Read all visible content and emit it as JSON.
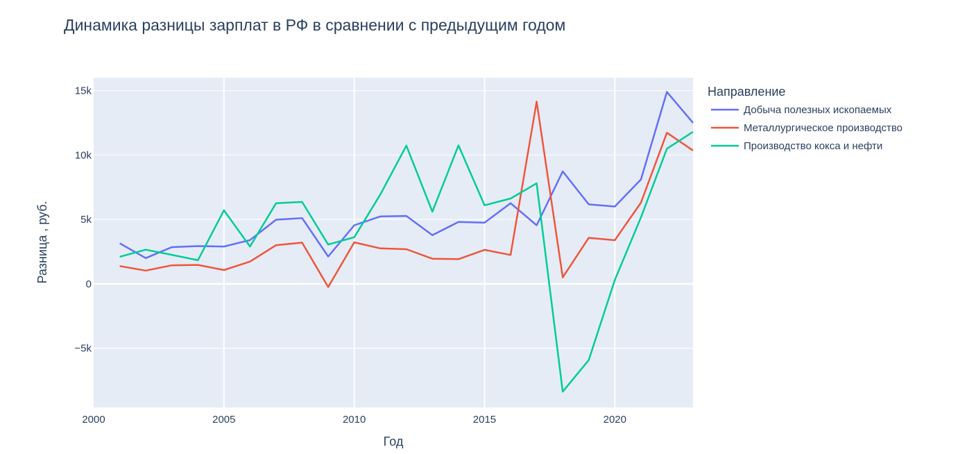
{
  "chart_data": {
    "type": "line",
    "title": "Динамика разницы зарплат в РФ в сравнении с предыдущим годом",
    "xlabel": "Год",
    "ylabel": "Разница , руб.",
    "legend_title": "Направление",
    "legend_position": "top-right outside",
    "grid": true,
    "xlim": [
      2000,
      2023
    ],
    "ylim": [
      -9600,
      16000
    ],
    "x_ticks": [
      2000,
      2005,
      2010,
      2015,
      2020
    ],
    "y_ticks": [
      -5000,
      0,
      5000,
      10000,
      15000
    ],
    "y_tick_labels": [
      "−5k",
      "0",
      "5k",
      "10k",
      "15k"
    ],
    "x": [
      2001,
      2002,
      2003,
      2004,
      2005,
      2006,
      2007,
      2008,
      2009,
      2010,
      2011,
      2012,
      2013,
      2014,
      2015,
      2016,
      2017,
      2018,
      2019,
      2020,
      2021,
      2022,
      2023
    ],
    "series": [
      {
        "name": "Добыча полезных ископаемых",
        "color": "#636efa",
        "values": [
          3150,
          2000,
          2850,
          2930,
          2900,
          3400,
          4980,
          5100,
          2120,
          4550,
          5230,
          5270,
          3780,
          4800,
          4750,
          6260,
          4550,
          8730,
          6170,
          6000,
          8100,
          14900,
          12500
        ]
      },
      {
        "name": "Металлургическое производство",
        "color": "#ef553b",
        "values": [
          1380,
          1030,
          1440,
          1470,
          1070,
          1730,
          3000,
          3200,
          -250,
          3220,
          2750,
          2690,
          1950,
          1920,
          2640,
          2240,
          14150,
          500,
          3570,
          3390,
          6300,
          11730,
          10350
        ]
      },
      {
        "name": "Производство кокса и нефти",
        "color": "#00cc96",
        "values": [
          2100,
          2650,
          2250,
          1830,
          5710,
          2900,
          6260,
          6360,
          3050,
          3620,
          6930,
          10730,
          5600,
          10750,
          6100,
          6620,
          7800,
          -8370,
          -5920,
          300,
          5150,
          10490,
          11800
        ]
      }
    ]
  }
}
